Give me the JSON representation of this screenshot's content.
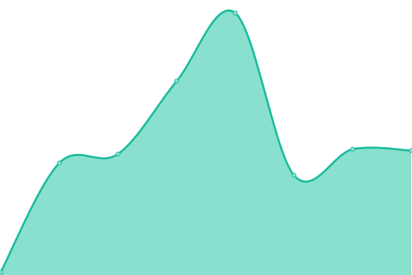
{
  "chart_data": {
    "type": "area",
    "title": "",
    "xlabel": "",
    "ylabel": "",
    "x": [
      0,
      1,
      2,
      3,
      4,
      5,
      6,
      7
    ],
    "values": [
      4,
      163,
      176,
      282,
      381,
      145,
      183,
      181
    ],
    "ylim": [
      0,
      400
    ],
    "grid": false,
    "legend": "none",
    "smooth": true,
    "colors": {
      "line": "#1abc9c",
      "fill": "#89e0cf",
      "marker_fill": "#89e0cf"
    }
  }
}
